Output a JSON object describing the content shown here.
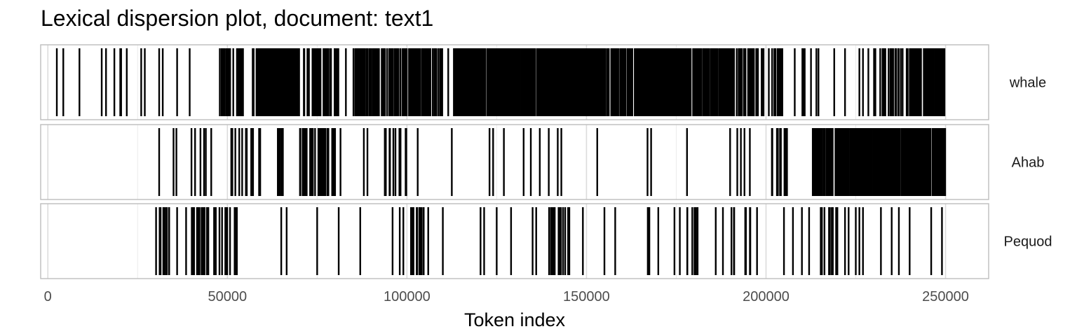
{
  "chart_data": {
    "type": "dispersion",
    "title": "Lexical dispersion plot, document: text1",
    "xlabel": "Token index",
    "ylabel": "",
    "xlim": [
      -2000,
      262000
    ],
    "x_ticks": [
      0,
      50000,
      100000,
      150000,
      200000,
      250000
    ],
    "grid": true,
    "panels": [
      {
        "name": "whale",
        "clusters": [
          [
            17000,
            22000,
            6
          ],
          [
            47000,
            55000,
            24
          ],
          [
            57000,
            70000,
            160
          ],
          [
            71000,
            81000,
            42
          ],
          [
            85000,
            110000,
            140
          ],
          [
            113000,
            150000,
            360
          ],
          [
            150000,
            192000,
            380
          ],
          [
            192000,
            205000,
            40
          ],
          [
            210000,
            216000,
            7
          ],
          [
            230000,
            240000,
            22
          ],
          [
            240000,
            250000,
            70
          ]
        ],
        "positions": [
          2500,
          4300,
          8800,
          15000,
          16200,
          26000,
          27000,
          31000,
          32000,
          36000,
          39500,
          83000,
          111500,
          208000,
          219000,
          222000,
          226000,
          227000,
          228500,
          245000,
          249500
        ]
      },
      {
        "name": "Ahab",
        "clusters": [
          [
            51000,
            57500,
            14
          ],
          [
            58000,
            60000,
            5
          ],
          [
            64000,
            67000,
            8
          ],
          [
            70000,
            77000,
            22
          ],
          [
            77000,
            80000,
            8
          ],
          [
            93000,
            100000,
            12
          ],
          [
            201000,
            208000,
            10
          ],
          [
            213000,
            224000,
            80
          ],
          [
            224000,
            250000,
            300
          ]
        ],
        "positions": [
          31000,
          35000,
          35800,
          40000,
          41000,
          42500,
          43500,
          44000,
          45500,
          81500,
          88000,
          89000,
          103000,
          112500,
          123000,
          124000,
          127000,
          132500,
          134500,
          137000,
          139500,
          142000,
          143000,
          153000,
          167000,
          168000,
          178000,
          190000,
          192000,
          193000,
          194000,
          195500
        ]
      },
      {
        "name": "Pequod",
        "clusters": [
          [
            30000,
            34000,
            9
          ],
          [
            40000,
            45000,
            16
          ],
          [
            46000,
            53000,
            12
          ],
          [
            101000,
            106000,
            12
          ],
          [
            139000,
            146000,
            14
          ],
          [
            167000,
            168000,
            4
          ],
          [
            178000,
            183000,
            8
          ],
          [
            189000,
            196000,
            8
          ],
          [
            214000,
            220000,
            10
          ]
        ],
        "positions": [
          36000,
          38500,
          65000,
          66500,
          75000,
          81000,
          87000,
          96000,
          98000,
          99000,
          110000,
          120500,
          121500,
          125000,
          129000,
          135000,
          136000,
          149000,
          155000,
          158000,
          170000,
          174500,
          176000,
          186000,
          188000,
          197500,
          205000,
          207500,
          210000,
          212000,
          222000,
          223000,
          225000,
          226000,
          227000,
          232000,
          235000,
          237000,
          240000,
          246000,
          249000
        ]
      }
    ]
  }
}
